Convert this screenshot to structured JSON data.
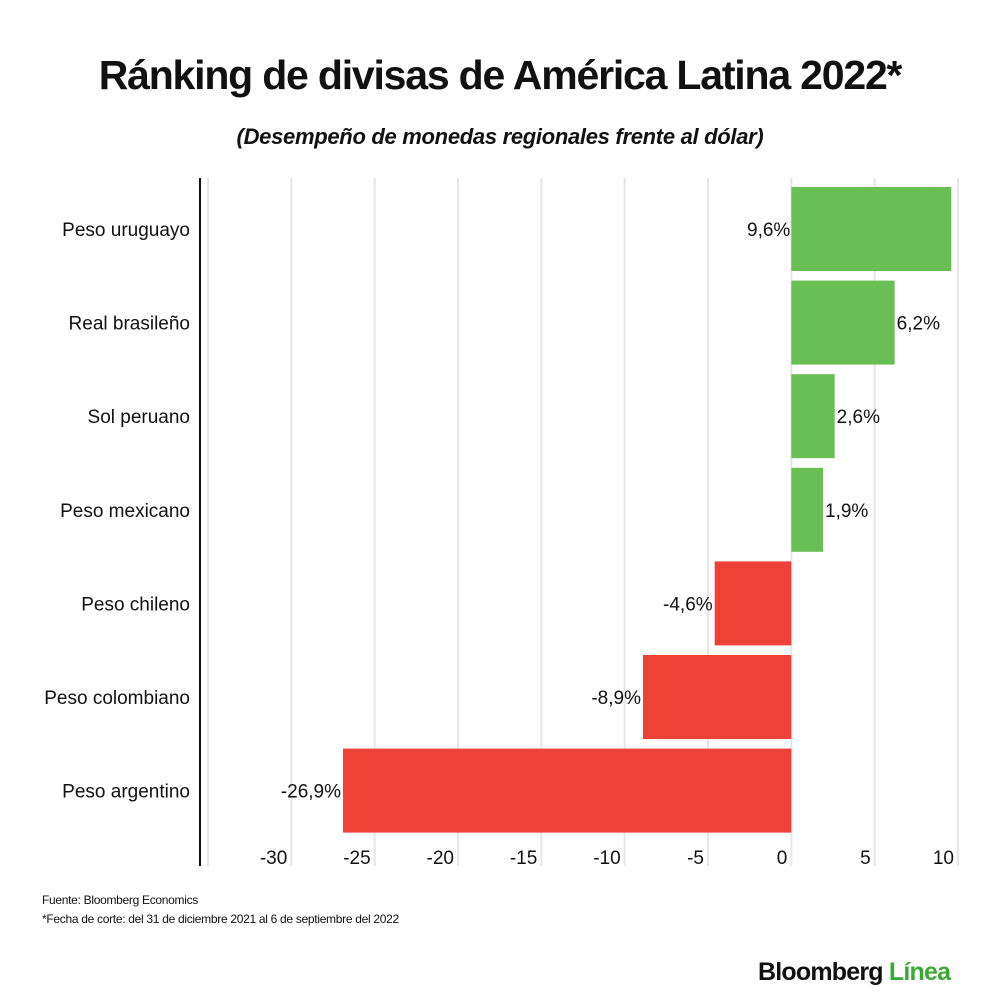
{
  "chart_data": {
    "type": "bar",
    "orientation": "horizontal",
    "title": "Ránking de divisas de América Latina 2022*",
    "subtitle": "(Desempeño de monedas regionales frente al dólar)",
    "categories": [
      "Peso uruguayo",
      "Real brasileño",
      "Sol peruano",
      "Peso mexicano",
      "Peso chileno",
      "Peso colombiano",
      "Peso argentino"
    ],
    "values": [
      9.6,
      6.2,
      2.6,
      1.9,
      -4.6,
      -8.9,
      -26.9
    ],
    "data_labels": [
      "9,6%",
      "6,2%",
      "2,6%",
      "1,9%",
      "-4,6%",
      "-8,9%",
      "-26,9%"
    ],
    "xlim": [
      -35,
      10
    ],
    "xticks": [
      -30,
      -25,
      -20,
      -15,
      -10,
      -5,
      0,
      5,
      10
    ],
    "xtick_labels": [
      "-30",
      "-25",
      "-20",
      "-15",
      "-10",
      "-5",
      "0",
      "5",
      "10"
    ],
    "grid": "vertical",
    "colors": {
      "positive": "#6abf54",
      "negative": "#ee4238",
      "grid": "#e6e6e6",
      "axis": "#111111"
    }
  },
  "footer": {
    "source": "Fuente: Bloomberg Economics",
    "note": "*Fecha de corte: del 31 de diciembre 2021 al 6 de septiembre del 2022"
  },
  "logo": {
    "part1": "Bloomberg",
    "part2": "Línea",
    "color2": "#3aa935"
  }
}
